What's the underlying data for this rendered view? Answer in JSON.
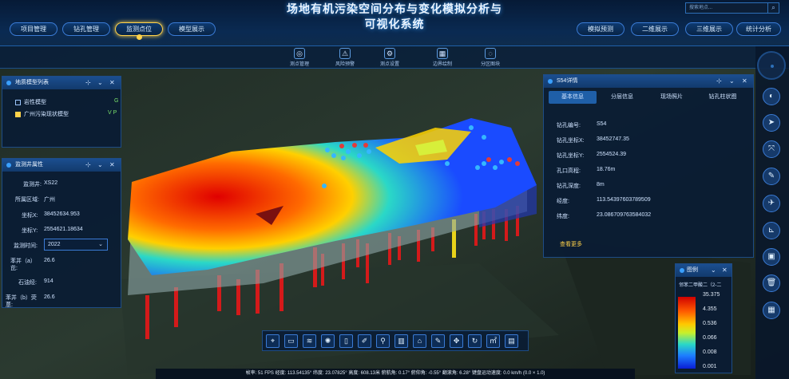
{
  "app": {
    "title_line1": "场地有机污染空间分布与变化模拟分析与",
    "title_line2": "可视化系统"
  },
  "search": {
    "placeholder": "搜索地点...",
    "icon": "search-icon"
  },
  "nav_left": [
    "项目管理",
    "钻孔管理",
    "监测点位",
    "模型展示"
  ],
  "nav_right": [
    "模拟预测",
    "二维展示",
    "三维展示",
    "统计分析"
  ],
  "nav_active": "监测点位",
  "sub_tools": [
    "测点管理",
    "风险预警",
    "测点设置",
    "边界绘制",
    "分区图块"
  ],
  "geo_panel": {
    "title": "地质模型列表",
    "items": [
      {
        "label": "岩性模型",
        "flag": "G",
        "checked": false
      },
      {
        "label": "广州污染现状模型",
        "flag": "V P",
        "checked": true
      }
    ]
  },
  "well_panel": {
    "title": "监测井属性",
    "fields": [
      {
        "label": "监测井:",
        "value": "XS22"
      },
      {
        "label": "所属区域:",
        "value": "广州"
      },
      {
        "label": "坐标X:",
        "value": "38452634.953"
      },
      {
        "label": "坐标Y:",
        "value": "2554621.18634"
      },
      {
        "label": "监测时间:",
        "value": "2022"
      },
      {
        "label": "苯并（a）芘:",
        "value": "26.6"
      },
      {
        "label": "石油烃:",
        "value": "914"
      },
      {
        "label": "苯并（b）荧蒽:",
        "value": "26.6"
      }
    ]
  },
  "detail_panel": {
    "title": "S54详情",
    "tabs": [
      "基本信息",
      "分层信息",
      "现场照片",
      "钻孔柱状图"
    ],
    "active_tab": "基本信息",
    "fields": [
      {
        "label": "钻孔编号:",
        "value": "S54"
      },
      {
        "label": "钻孔坐标X:",
        "value": "38452747.35"
      },
      {
        "label": "钻孔坐标Y:",
        "value": "2554524.39"
      },
      {
        "label": "孔口高程:",
        "value": "18.76m"
      },
      {
        "label": "钻孔深度:",
        "value": "8m"
      },
      {
        "label": "经度:",
        "value": "113.54397603789509"
      },
      {
        "label": "纬度:",
        "value": "23.086709763584032"
      }
    ],
    "more": "查看更多"
  },
  "legend": {
    "title": "图例",
    "subtitle": "邻苯二甲酸二（2-二",
    "values": [
      "35.375",
      "4.355",
      "0.536",
      "0.066",
      "0.008",
      "0.001"
    ],
    "colors": {
      "high": "#d10000",
      "mid": "#ffc800",
      "low": "#0a1ed6"
    }
  },
  "bottom_tools": [
    "location-icon",
    "screen-icon",
    "layers-icon",
    "light-icon",
    "box-icon",
    "note-icon",
    "pin-icon",
    "bar-icon",
    "image-icon",
    "edit-icon",
    "move-icon",
    "rotate-icon",
    "measure-icon",
    "scene-icon"
  ],
  "right_tools": [
    "globe-icon",
    "cursor-icon",
    "expand-icon",
    "edit-box-icon",
    "fly-icon",
    "ruler-icon",
    "image-icon",
    "trash-icon",
    "grid-icon"
  ],
  "status": "帧率: 51 FPS 经度: 113.54135° 纬度: 23.07825° 高度: 608.13米 俯航角: 0.17° 俯仰角: -0.55° 翻滚角: 6.28° 键盘运动速度: 0.0 km/h (0.0 × 1.0)"
}
